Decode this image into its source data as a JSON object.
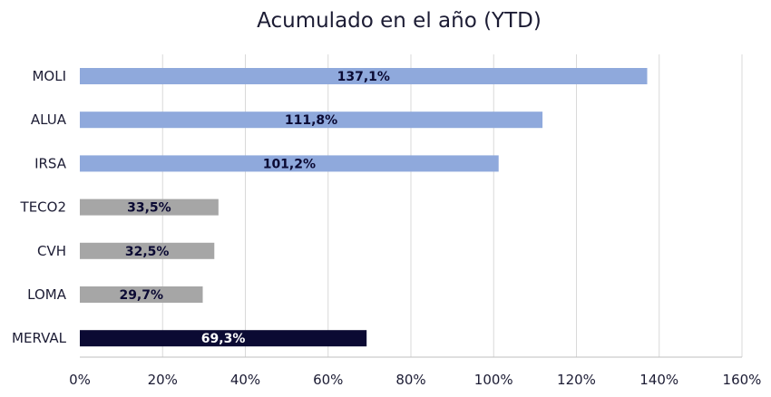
{
  "chart_data": {
    "type": "bar",
    "orientation": "horizontal",
    "title": "Acumulado en el año (YTD)",
    "categories": [
      "MOLI",
      "ALUA",
      "IRSA",
      "TECO2",
      "CVH",
      "LOMA",
      "MERVAL"
    ],
    "values": [
      137.1,
      111.8,
      101.2,
      33.5,
      32.5,
      29.7,
      69.3
    ],
    "value_labels": [
      "137,1%",
      "111,8%",
      "101,2%",
      "33,5%",
      "32,5%",
      "29,7%",
      "69,3%"
    ],
    "bar_colors": [
      "#8fa9dc",
      "#8fa9dc",
      "#8fa9dc",
      "#a6a6a6",
      "#a6a6a6",
      "#a6a6a6",
      "#0b0a33"
    ],
    "label_colors": [
      "#0b0a33",
      "#0b0a33",
      "#0b0a33",
      "#0b0a33",
      "#0b0a33",
      "#0b0a33",
      "#ffffff"
    ],
    "xlim": [
      0,
      160
    ],
    "xticks": [
      0,
      20,
      40,
      60,
      80,
      100,
      120,
      140,
      160
    ],
    "xtick_labels": [
      "0%",
      "20%",
      "40%",
      "60%",
      "80%",
      "100%",
      "120%",
      "140%",
      "160%"
    ],
    "grid": true,
    "legend": "none"
  }
}
